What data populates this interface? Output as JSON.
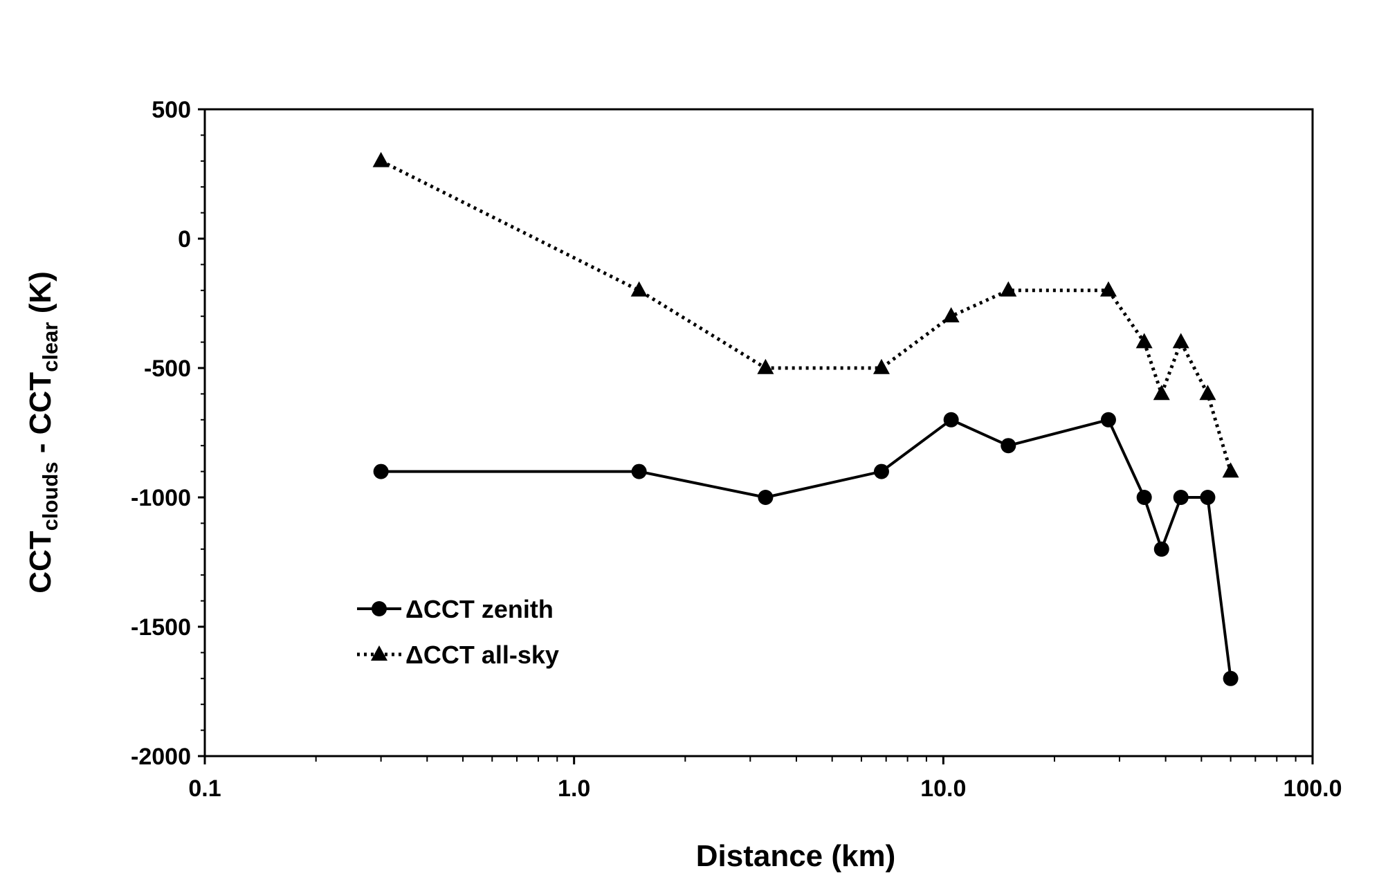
{
  "chart_data": {
    "type": "line",
    "title": "",
    "xlabel": "Distance (km)",
    "ylabel": {
      "parts": [
        {
          "text": "CCT",
          "sub": false
        },
        {
          "text": "clouds",
          "sub": true
        },
        {
          "text": " - CCT",
          "sub": false
        },
        {
          "text": "clear",
          "sub": true
        },
        {
          "text": " (K)",
          "sub": false
        }
      ]
    },
    "xscale": "log",
    "xlim": [
      0.1,
      100
    ],
    "ylim": [
      -2000,
      500
    ],
    "x_ticks": [
      0.1,
      1,
      10,
      100
    ],
    "x_tick_labels": [
      "0.1",
      "1.0",
      "10.0",
      "100.0"
    ],
    "y_ticks": [
      500,
      0,
      -500,
      -1000,
      -1500,
      -2000
    ],
    "y_tick_labels": [
      "500",
      "0",
      "-500",
      "-1000",
      "-1500",
      "-2000"
    ],
    "grid": false,
    "legend_position": "bottom-left",
    "series": [
      {
        "name": "ΔCCT zenith",
        "style": "solid",
        "marker": "circle",
        "x": [
          0.3,
          1.5,
          3.3,
          6.8,
          10.5,
          15,
          28,
          35,
          39,
          44,
          52,
          60
        ],
        "values": [
          -900,
          -900,
          -1000,
          -900,
          -700,
          -800,
          -700,
          -1000,
          -1200,
          -1000,
          -1000,
          -1700
        ]
      },
      {
        "name": "ΔCCT all-sky",
        "style": "dotted",
        "marker": "triangle",
        "x": [
          0.3,
          1.5,
          3.3,
          6.8,
          10.5,
          15,
          28,
          35,
          39,
          44,
          52,
          60
        ],
        "values": [
          300,
          -200,
          -500,
          -500,
          -300,
          -200,
          -200,
          -400,
          -600,
          -400,
          -600,
          -900
        ]
      }
    ]
  }
}
